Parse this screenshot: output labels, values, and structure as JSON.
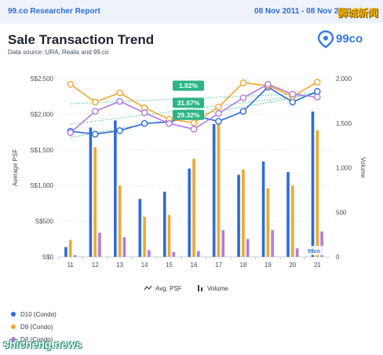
{
  "header": {
    "brand": "99.co Researcher Report",
    "date_range": "08 Nov 2011 - 08 Nov 2021",
    "watermark": "狮城新闻"
  },
  "title": "Sale Transaction Trend",
  "source": "Data source: URA, Realis and 99.co",
  "logo_text": "99co",
  "colors": {
    "d10": "#2f6bd8",
    "d9": "#f0a732",
    "d2": "#b07ce0",
    "avg_teal": "#2bb585"
  },
  "chart_data": {
    "type": "bar+line",
    "categories": [
      "11",
      "12",
      "13",
      "14",
      "15",
      "16",
      "17",
      "18",
      "19",
      "20",
      "21"
    ],
    "ylabel": "Average PSF",
    "y2label": "Volume",
    "ylim": [
      0,
      2500
    ],
    "y2lim": [
      0,
      2000
    ],
    "yticks": [
      0,
      500,
      1000,
      1500,
      2000,
      2500
    ],
    "yticklabels": [
      "S$0",
      "S$500",
      "S$1,000",
      "S$1,500",
      "S$2,000",
      "S$2,500"
    ],
    "y2ticks": [
      0,
      500,
      1000,
      1500,
      2000
    ],
    "y2ticklabels": [
      "0",
      "500",
      "1,000",
      "1,500",
      "2,000"
    ],
    "volume_series": [
      {
        "name": "D10 (Condo)",
        "color": "#2f6bd8",
        "values": [
          110,
          1450,
          1530,
          650,
          730,
          990,
          1490,
          920,
          1070,
          950,
          1630
        ]
      },
      {
        "name": "D9 (Condo)",
        "color": "#f0a732",
        "values": [
          190,
          1230,
          800,
          450,
          470,
          1100,
          1520,
          980,
          770,
          800,
          1420
        ]
      },
      {
        "name": "D2 (Condo)",
        "color": "#b07ce0",
        "values": [
          20,
          270,
          220,
          75,
          55,
          65,
          300,
          200,
          300,
          95,
          285
        ]
      }
    ],
    "psf_series": [
      {
        "name": "D10 (Condo)",
        "color": "#2f6bd8",
        "values": [
          1760,
          1720,
          1770,
          1870,
          1890,
          1980,
          1900,
          2040,
          2380,
          2170,
          2320
        ]
      },
      {
        "name": "D9 (Condo)",
        "color": "#f0a732",
        "values": [
          2420,
          2170,
          2300,
          2090,
          1930,
          1880,
          2100,
          2440,
          2400,
          2250,
          2450
        ]
      },
      {
        "name": "D2 (Condo)",
        "color": "#b07ce0",
        "values": [
          1740,
          2040,
          2180,
          2020,
          1870,
          1790,
          2010,
          2230,
          2420,
          2280,
          2240
        ]
      }
    ],
    "trend_labels": [
      "1.82%",
      "31.67%",
      "29.32%"
    ],
    "legend": [
      "Avg. PSF",
      "Volume"
    ],
    "chart_watermark": "99co"
  }
}
